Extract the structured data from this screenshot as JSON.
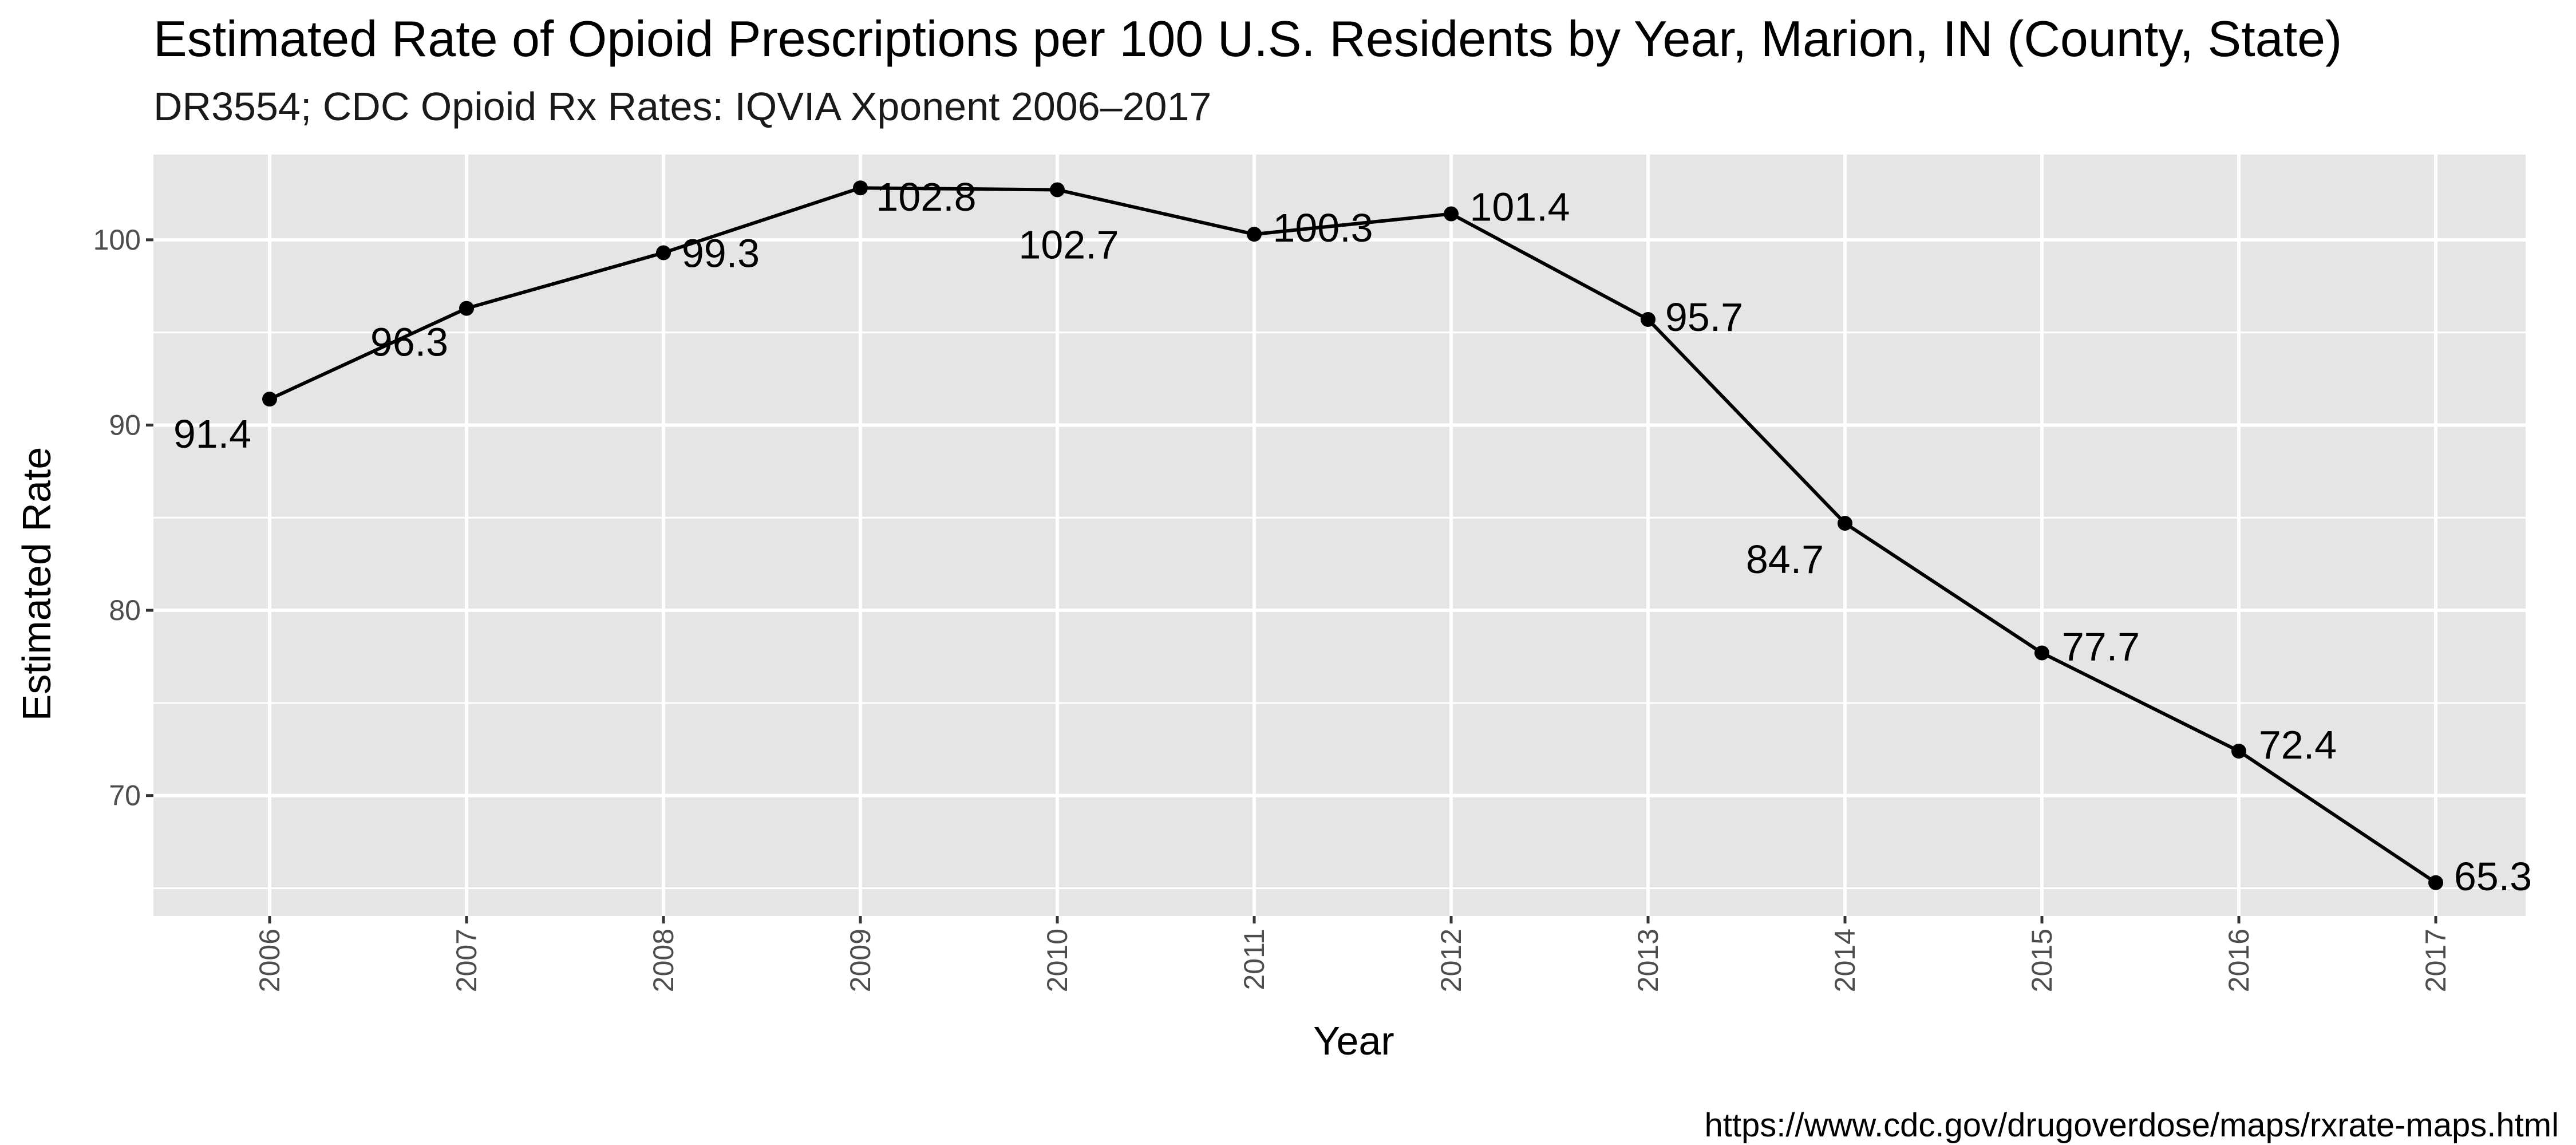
{
  "chart_data": {
    "type": "line",
    "title": "Estimated Rate of Opioid Prescriptions per 100 U.S. Residents by Year, Marion, IN (County, State)",
    "subtitle": "DR3554; CDC Opioid Rx Rates: IQVIA Xponent 2006–2017",
    "xlabel": "Year",
    "ylabel": "Estimated Rate",
    "caption": "https://www.cdc.gov/drugoverdose/maps/rxrate-maps.html",
    "x": [
      "2006",
      "2007",
      "2008",
      "2009",
      "2010",
      "2011",
      "2012",
      "2013",
      "2014",
      "2015",
      "2016",
      "2017"
    ],
    "series": [
      {
        "values": [
          91.4,
          96.3,
          99.3,
          102.8,
          102.7,
          100.3,
          101.4,
          95.7,
          84.7,
          77.7,
          72.4,
          65.3
        ]
      }
    ],
    "data_labels": [
      "91.4",
      "96.3",
      "99.3",
      "102.8",
      "102.7",
      "100.3",
      "101.4",
      "95.7",
      "84.7",
      "77.7",
      "72.4",
      "65.3"
    ],
    "yticks": [
      70,
      80,
      90,
      100
    ],
    "ylim": [
      63.5,
      104.6
    ],
    "grid": true,
    "panel_color": "#e5e5e5",
    "grid_color": "#ffffff",
    "line_color": "#000000"
  }
}
